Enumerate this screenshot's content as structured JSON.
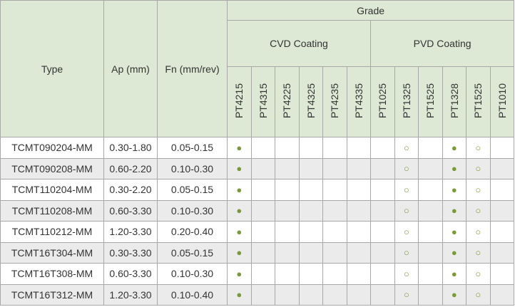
{
  "header": {
    "type": "Type",
    "ap": "Ap (mm)",
    "fn": "Fn (mm/rev)",
    "grade": "Grade",
    "groups": [
      {
        "label": "CVD Coating",
        "grades": [
          "PT4215",
          "PT4315",
          "PT4225",
          "PT4325",
          "PT4235",
          "PT4335"
        ]
      },
      {
        "label": "PVD Coating",
        "grades": [
          "PT1025",
          "PT1325",
          "PT1525",
          "PT1328",
          "PT1525",
          "PT1010"
        ]
      }
    ]
  },
  "rows": [
    {
      "type": "TCMT090204-MM",
      "ap": "0.30-1.80",
      "fn": "0.05-0.15",
      "marks": [
        "●",
        null,
        null,
        null,
        null,
        null,
        null,
        "○",
        null,
        "●",
        "○",
        null
      ]
    },
    {
      "type": "TCMT090208-MM",
      "ap": "0.60-2.20",
      "fn": "0.10-0.30",
      "marks": [
        "●",
        null,
        null,
        null,
        null,
        null,
        null,
        "○",
        null,
        "●",
        "○",
        null
      ]
    },
    {
      "type": "TCMT110204-MM",
      "ap": "0.30-2.20",
      "fn": "0.05-0.15",
      "marks": [
        "●",
        null,
        null,
        null,
        null,
        null,
        null,
        "○",
        null,
        "●",
        "○",
        null
      ]
    },
    {
      "type": "TCMT110208-MM",
      "ap": "0.60-3.30",
      "fn": "0.10-0.30",
      "marks": [
        "●",
        null,
        null,
        null,
        null,
        null,
        null,
        "○",
        null,
        "●",
        "○",
        null
      ]
    },
    {
      "type": "TCMT110212-MM",
      "ap": "1.20-3.30",
      "fn": "0.20-0.40",
      "marks": [
        "●",
        null,
        null,
        null,
        null,
        null,
        null,
        "○",
        null,
        "●",
        "○",
        null
      ]
    },
    {
      "type": "TCMT16T304-MM",
      "ap": "0.30-3.30",
      "fn": "0.05-0.15",
      "marks": [
        "●",
        null,
        null,
        null,
        null,
        null,
        null,
        "○",
        null,
        "●",
        "○",
        null
      ]
    },
    {
      "type": "TCMT16T308-MM",
      "ap": "0.60-3.30",
      "fn": "0.10-0.30",
      "marks": [
        "●",
        null,
        null,
        null,
        null,
        null,
        null,
        "○",
        null,
        "●",
        "○",
        null
      ]
    },
    {
      "type": "TCMT16T312-MM",
      "ap": "1.20-3.30",
      "fn": "0.10-0.40",
      "marks": [
        "●",
        null,
        null,
        null,
        null,
        null,
        null,
        "○",
        null,
        "●",
        "○",
        null
      ]
    }
  ]
}
